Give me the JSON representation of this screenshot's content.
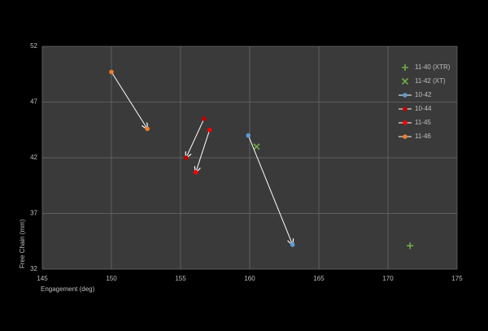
{
  "chart_data": {
    "type": "scatter",
    "xlabel": "Engagement (deg)",
    "ylabel": "Free Chain (mm)",
    "xlim": [
      145,
      175
    ],
    "xticks": [
      145,
      150,
      155,
      160,
      165,
      170,
      175
    ],
    "ylim": [
      32,
      52
    ],
    "yticks": [
      32,
      37,
      42,
      47,
      52
    ],
    "grid": true,
    "legend": "upper right",
    "series": [
      {
        "name": "11-40 (XTR)",
        "color": "#70ad47",
        "marker": "plus",
        "x": [
          171.6
        ],
        "values": [
          34.1
        ]
      },
      {
        "name": "11-42 (XT)",
        "color": "#70ad47",
        "marker": "cross",
        "x": [
          160.5
        ],
        "values": [
          43.0
        ]
      },
      {
        "name": "10-42",
        "color": "#5b9bd5",
        "marker": "circle",
        "line": "arrow",
        "x": [
          159.9,
          163.1
        ],
        "values": [
          44.0,
          34.2
        ]
      },
      {
        "name": "10-44",
        "color": "#c00000",
        "marker": "circle",
        "line": "arrow",
        "x": [
          156.7,
          155.4
        ],
        "values": [
          45.5,
          42.0
        ]
      },
      {
        "name": "11-45",
        "color": "#ff0000",
        "marker": "circle",
        "line": "arrow",
        "x": [
          157.1,
          156.1
        ],
        "values": [
          44.5,
          40.7
        ]
      },
      {
        "name": "11-46",
        "color": "#ed7d31",
        "marker": "circle",
        "line": "arrow",
        "x": [
          150.0,
          152.6
        ],
        "values": [
          49.7,
          44.6
        ]
      }
    ]
  }
}
